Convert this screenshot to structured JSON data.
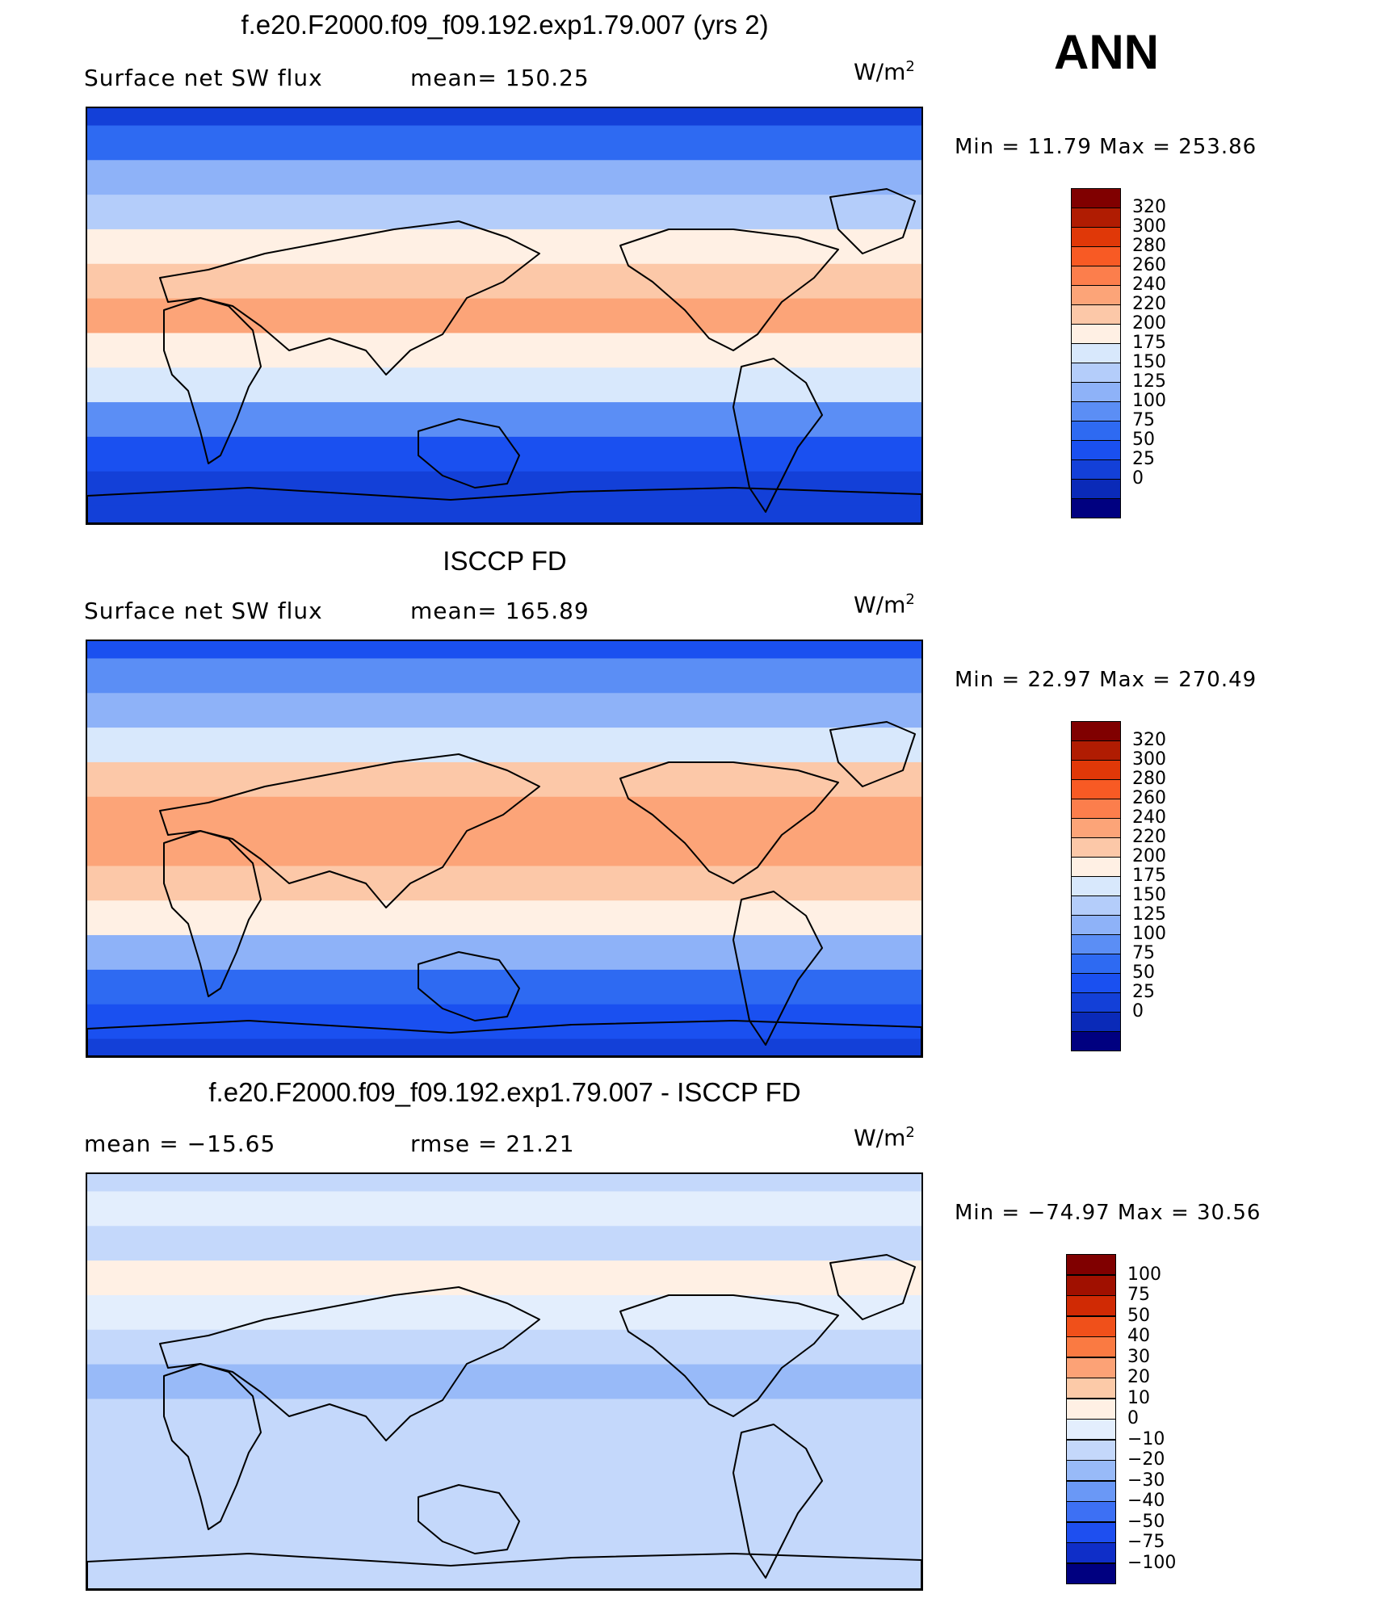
{
  "season": "ANN",
  "colors": {
    "seq": [
      "#000080",
      "#0a2ab8",
      "#1340d8",
      "#1a50f0",
      "#2e6af2",
      "#5b8ef5",
      "#8eb2f8",
      "#b4cdfa",
      "#d8e8fc",
      "#fff0e4",
      "#fcc8a8",
      "#fca478",
      "#fc7e4c",
      "#f85a24",
      "#e03808",
      "#b01c02",
      "#800000"
    ],
    "diff": [
      "#000080",
      "#0f2ec8",
      "#1e4ff0",
      "#3d70f4",
      "#6a98f6",
      "#98baf8",
      "#c4d8fb",
      "#e3eefd",
      "#fff0e4",
      "#fccaa8",
      "#fca276",
      "#fa7a42",
      "#f0501a",
      "#d02a04",
      "#a01000",
      "#800000"
    ]
  },
  "panels": [
    {
      "title": "f.e20.F2000.f09_f09.192.exp1.79.007 (yrs 2)",
      "left_label": "Surface net SW flux",
      "mid_label": "mean=  150.25",
      "units": "W/m",
      "units_exp": "2",
      "minmax": "Min  =    11.79  Max  =  253.86"
    },
    {
      "title": "ISCCP FD",
      "left_label": "Surface net SW flux",
      "mid_label": "mean=  165.89",
      "units": "W/m",
      "units_exp": "2",
      "minmax": "Min  =    22.97  Max  =  270.49"
    },
    {
      "title": "f.e20.F2000.f09_f09.192.exp1.79.007 - ISCCP FD",
      "left_label": "mean  =  −15.65",
      "mid_label": "rmse  =    21.21",
      "units": "W/m",
      "units_exp": "2",
      "minmax": "Min  =  −74.97  Max  =    30.56"
    }
  ],
  "chart_data": [
    {
      "type": "heatmap",
      "title": "f.e20.F2000.f09_f09.192.exp1.79.007 (yrs 2)",
      "variable": "Surface net SW flux",
      "units": "W/m2",
      "mean": 150.25,
      "min": 11.79,
      "max": 253.86,
      "colorbar_levels": [
        "320",
        "300",
        "280",
        "260",
        "240",
        "220",
        "200",
        "175",
        "150",
        "125",
        "100",
        "75",
        "50",
        "25",
        "0"
      ],
      "lat_bands": [
        90,
        75,
        60,
        45,
        30,
        15,
        0,
        -15,
        -30,
        -45,
        -60,
        -75,
        -90
      ],
      "zonal_band_values": [
        40,
        90,
        125,
        160,
        215,
        225,
        240,
        215,
        190,
        110,
        70,
        40,
        30
      ]
    },
    {
      "type": "heatmap",
      "title": "ISCCP FD",
      "variable": "Surface net SW flux",
      "units": "W/m2",
      "mean": 165.89,
      "min": 22.97,
      "max": 270.49,
      "colorbar_levels": [
        "320",
        "300",
        "280",
        "260",
        "240",
        "220",
        "200",
        "175",
        "150",
        "125",
        "100",
        "75",
        "50",
        "25",
        "0"
      ],
      "lat_bands": [
        90,
        75,
        60,
        45,
        30,
        15,
        0,
        -15,
        -30,
        -45,
        -60,
        -75,
        -90
      ],
      "zonal_band_values": [
        60,
        100,
        140,
        180,
        225,
        240,
        255,
        235,
        205,
        125,
        80,
        55,
        45
      ]
    },
    {
      "type": "heatmap",
      "title": "f.e20.F2000.f09_f09.192.exp1.79.007 - ISCCP FD",
      "units": "W/m2",
      "mean": -15.65,
      "rmse": 21.21,
      "min": -74.97,
      "max": 30.56,
      "colorbar_levels": [
        "100",
        "75",
        "50",
        "40",
        "30",
        "20",
        "10",
        "0",
        "−10",
        "−20",
        "−30",
        "−40",
        "−50",
        "−75",
        "−100"
      ],
      "lat_bands": [
        90,
        75,
        60,
        45,
        30,
        15,
        0,
        -15,
        -30,
        -45,
        -60,
        -75,
        -90
      ],
      "zonal_band_values": [
        -15,
        -10,
        -15,
        5,
        -10,
        -20,
        -25,
        -20,
        -15,
        -15,
        -15,
        -15,
        -15
      ]
    }
  ]
}
